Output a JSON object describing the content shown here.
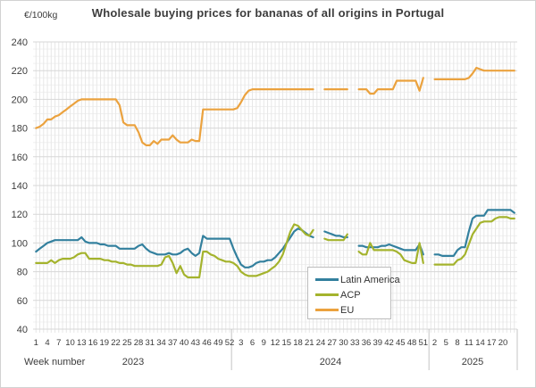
{
  "chart_data": {
    "type": "line",
    "title": "Wholesale buying prices for bananas of all origins in Portugal",
    "ylabel": "€/100kg",
    "xlabel": "Week number",
    "ylim": [
      40,
      240
    ],
    "y_ticks": [
      240,
      220,
      200,
      180,
      160,
      140,
      120,
      100,
      80,
      60,
      40
    ],
    "y_major_step": 20,
    "y_minor_step": 5,
    "x_tick_every": 3,
    "legend_position": "lower right",
    "grid": "weekly vertical and 5-unit horizontal minor gridlines, 20-unit majors",
    "years": [
      {
        "label": "2023",
        "weeks": 52
      },
      {
        "label": "2024",
        "weeks": 52
      },
      {
        "label": "2025",
        "weeks": 23
      }
    ],
    "series": [
      {
        "name": "Latin America",
        "color": "#33809e",
        "values": [
          94,
          96,
          98,
          100,
          101,
          102,
          102,
          102,
          102,
          102,
          102,
          102,
          104,
          101,
          100,
          100,
          100,
          99,
          99,
          98,
          98,
          98,
          96,
          96,
          96,
          96,
          96,
          98,
          99,
          96,
          94,
          93,
          92,
          92,
          92,
          93,
          92,
          92,
          93,
          95,
          96,
          93,
          91,
          93,
          105,
          103,
          103,
          103,
          103,
          103,
          103,
          103,
          96,
          90,
          85,
          83,
          83,
          84,
          86,
          87,
          87,
          88,
          88,
          90,
          93,
          96,
          100,
          104,
          108,
          110,
          109,
          107,
          105,
          104,
          null,
          null,
          108,
          107,
          106,
          105,
          105,
          104,
          104,
          null,
          null,
          98,
          98,
          97,
          97,
          97,
          97,
          98,
          98,
          99,
          98,
          97,
          96,
          95,
          95,
          95,
          95,
          99,
          92,
          null,
          null,
          92,
          92,
          91,
          91,
          91,
          91,
          95,
          97,
          97,
          108,
          117,
          119,
          119,
          119,
          123,
          123,
          123,
          123,
          123,
          123,
          123,
          121
        ]
      },
      {
        "name": "ACP",
        "color": "#a4b32d",
        "values": [
          86,
          86,
          86,
          86,
          88,
          86,
          88,
          89,
          89,
          89,
          90,
          92,
          93,
          93,
          89,
          89,
          89,
          89,
          88,
          88,
          87,
          87,
          86,
          86,
          85,
          85,
          84,
          84,
          84,
          84,
          84,
          84,
          84,
          85,
          90,
          91,
          86,
          79,
          84,
          78,
          76,
          76,
          76,
          76,
          94,
          94,
          92,
          91,
          89,
          88,
          87,
          87,
          86,
          84,
          80,
          78,
          77,
          77,
          77,
          78,
          79,
          80,
          82,
          84,
          87,
          92,
          100,
          108,
          113,
          112,
          109,
          106,
          105,
          109,
          null,
          null,
          103,
          102,
          102,
          102,
          102,
          102,
          106,
          null,
          null,
          94,
          92,
          92,
          100,
          95,
          95,
          95,
          95,
          95,
          95,
          94,
          92,
          88,
          87,
          86,
          86,
          100,
          86,
          null,
          null,
          85,
          85,
          85,
          85,
          85,
          85,
          88,
          89,
          92,
          99,
          106,
          110,
          114,
          115,
          115,
          115,
          117,
          118,
          118,
          118,
          117,
          117
        ]
      },
      {
        "name": "EU",
        "color": "#eba23e",
        "values": [
          180,
          181,
          183,
          186,
          186,
          188,
          189,
          191,
          193,
          195,
          197,
          199,
          200,
          200,
          200,
          200,
          200,
          200,
          200,
          200,
          200,
          200,
          196,
          184,
          182,
          182,
          182,
          177,
          170,
          168,
          168,
          171,
          169,
          172,
          172,
          172,
          175,
          172,
          170,
          170,
          170,
          172,
          171,
          171,
          193,
          193,
          193,
          193,
          193,
          193,
          193,
          193,
          193,
          194,
          198,
          203,
          206,
          207,
          207,
          207,
          207,
          207,
          207,
          207,
          207,
          207,
          207,
          207,
          207,
          207,
          207,
          207,
          207,
          207,
          null,
          null,
          207,
          207,
          207,
          207,
          207,
          207,
          207,
          null,
          null,
          207,
          207,
          207,
          204,
          204,
          207,
          207,
          207,
          207,
          207,
          213,
          213,
          213,
          213,
          213,
          213,
          206,
          215,
          null,
          null,
          214,
          214,
          214,
          214,
          214,
          214,
          214,
          214,
          214,
          215,
          218,
          222,
          221,
          220,
          220,
          220,
          220,
          220,
          220,
          220,
          220,
          220
        ]
      }
    ]
  }
}
